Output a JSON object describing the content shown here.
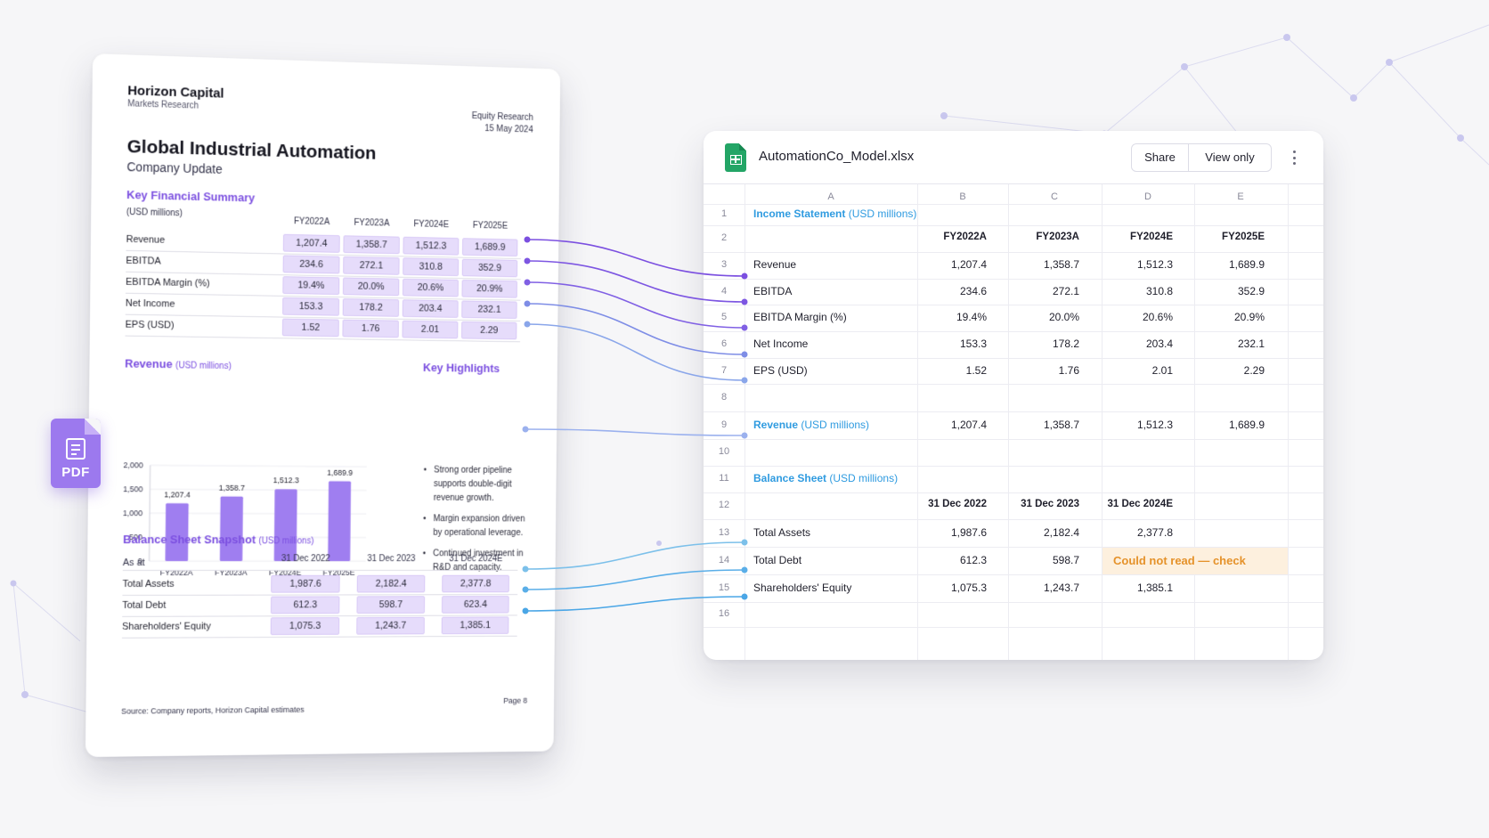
{
  "pdf": {
    "brand": "Horizon Capital",
    "brand_sub": "Markets Research",
    "doc_type": "Equity Research",
    "date": "15 May 2024",
    "title": "Global Industrial Automation",
    "subtitle": "Company Update",
    "summary": {
      "title": "Key Financial Summary",
      "unit_note": "(USD millions)",
      "columns": [
        "FY2022A",
        "FY2023A",
        "FY2024E",
        "FY2025E"
      ],
      "rows": [
        {
          "label": "Revenue",
          "values": [
            "1,207.4",
            "1,358.7",
            "1,512.3",
            "1,689.9"
          ]
        },
        {
          "label": "EBITDA",
          "values": [
            "234.6",
            "272.1",
            "310.8",
            "352.9"
          ]
        },
        {
          "label": "EBITDA Margin (%)",
          "values": [
            "19.4%",
            "20.0%",
            "20.6%",
            "20.9%"
          ]
        },
        {
          "label": "Net Income",
          "values": [
            "153.3",
            "178.2",
            "203.4",
            "232.1"
          ]
        },
        {
          "label": "EPS (USD)",
          "values": [
            "1.52",
            "1.76",
            "2.01",
            "2.29"
          ]
        }
      ]
    },
    "revenue_chart": {
      "title": "Revenue",
      "unit": "(USD millions)"
    },
    "highlights": {
      "title": "Key Highlights",
      "items": [
        "Strong order pipeline supports double-digit revenue growth.",
        "Margin expansion driven by operational leverage.",
        "Continued investment in R&D and capacity."
      ]
    },
    "balance": {
      "title": "Balance Sheet Snapshot",
      "unit": "(USD millions)",
      "as_at": "As at",
      "columns": [
        "31 Dec 2022",
        "31 Dec 2023",
        "31 Dec 2024E"
      ],
      "rows": [
        {
          "label": "Total Assets",
          "values": [
            "1,987.6",
            "2,182.4",
            "2,377.8"
          ]
        },
        {
          "label": "Total Debt",
          "values": [
            "612.3",
            "598.7",
            "623.4"
          ]
        },
        {
          "label": "Shareholders' Equity",
          "values": [
            "1,075.3",
            "1,243.7",
            "1,385.1"
          ]
        }
      ]
    },
    "source": "Source: Company reports, Horizon Capital estimates",
    "page": "Page 8",
    "badge_label": "PDF"
  },
  "chart_data": {
    "type": "bar",
    "title": "Revenue (USD millions)",
    "categories": [
      "FY2022A",
      "FY2023A",
      "FY2024E",
      "FY2025E"
    ],
    "values": [
      1207.4,
      1358.7,
      1512.3,
      1689.9
    ],
    "data_labels": [
      "1,207.4",
      "1,358.7",
      "1,512.3",
      "1,689.9"
    ],
    "yticks": [
      "0",
      "500",
      "1,000",
      "1,500",
      "2,000"
    ],
    "ylim": [
      0,
      2000
    ],
    "color": "#9f7ef0",
    "grid": true
  },
  "sheet": {
    "file_name": "AutomationCo_Model.xlsx",
    "share_label": "Share",
    "view_label": "View only",
    "columns": [
      "A",
      "B",
      "C",
      "D",
      "E"
    ],
    "row_numbers": [
      "1",
      "2",
      "3",
      "4",
      "5",
      "6",
      "7",
      "8",
      "9",
      "10",
      "11",
      "12",
      "13",
      "14",
      "15",
      "16"
    ],
    "income_title": "Income Statement",
    "income_unit": "(USD millions)",
    "income_headers": [
      "FY2022A",
      "FY2023A",
      "FY2024E",
      "FY2025E"
    ],
    "income_rows": [
      {
        "label": "Revenue",
        "values": [
          "1,207.4",
          "1,358.7",
          "1,512.3",
          "1,689.9"
        ]
      },
      {
        "label": "EBITDA",
        "values": [
          "234.6",
          "272.1",
          "310.8",
          "352.9"
        ]
      },
      {
        "label": "EBITDA Margin (%)",
        "values": [
          "19.4%",
          "20.0%",
          "20.6%",
          "20.9%"
        ]
      },
      {
        "label": "Net Income",
        "values": [
          "153.3",
          "178.2",
          "203.4",
          "232.1"
        ]
      },
      {
        "label": "EPS (USD)",
        "values": [
          "1.52",
          "1.76",
          "2.01",
          "2.29"
        ]
      }
    ],
    "revenue_row": {
      "label": "Revenue",
      "unit": "(USD millions)",
      "values": [
        "1,207.4",
        "1,358.7",
        "1,512.3",
        "1,689.9"
      ]
    },
    "balance_title": "Balance Sheet",
    "balance_unit": "(USD millions)",
    "balance_headers": [
      "31 Dec 2022",
      "31 Dec 2023",
      "31 Dec 2024E"
    ],
    "balance_rows": [
      {
        "label": "Total Assets",
        "values": [
          "1,987.6",
          "2,182.4",
          "2,377.8"
        ]
      },
      {
        "label": "Total Debt",
        "values": [
          "612.3",
          "598.7",
          "Could not read — check"
        ]
      },
      {
        "label": "Shareholders' Equity",
        "values": [
          "1,075.3",
          "1,243.7",
          "1,385.1"
        ]
      }
    ]
  },
  "colors": {
    "purple_accent": "#7b4fe0",
    "blue_accent": "#2f9be0",
    "warning_text": "#e5922a",
    "warning_bg": "#fdf0de",
    "sheets_green": "#23a566"
  }
}
